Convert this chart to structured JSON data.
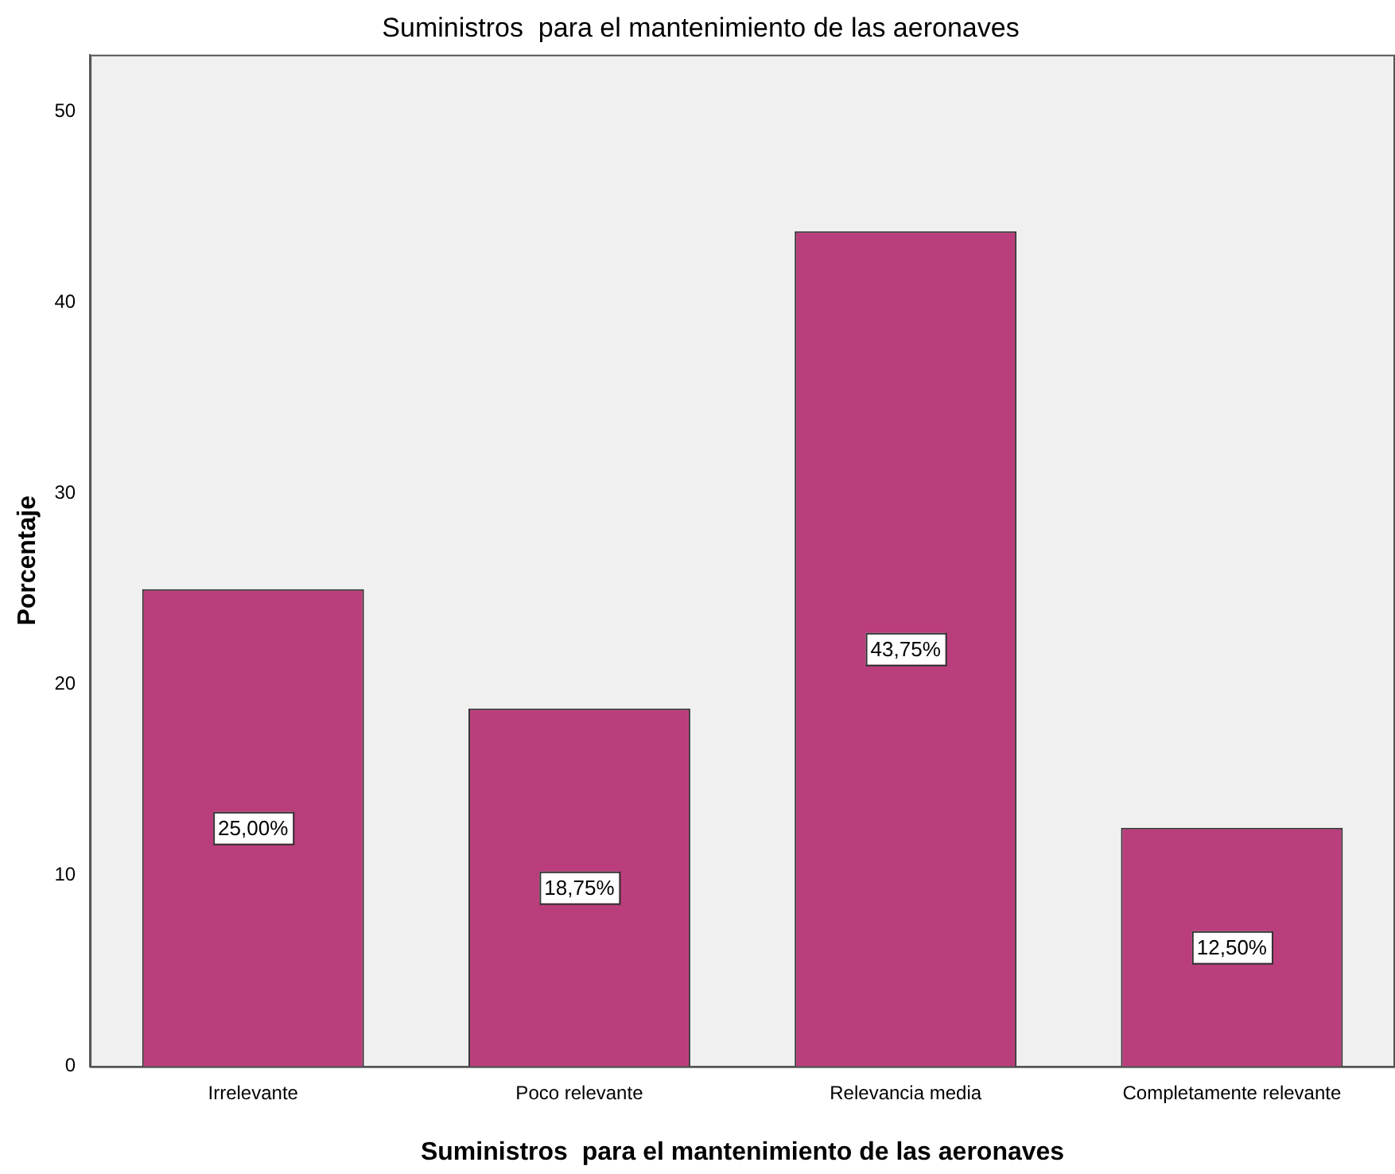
{
  "chart_data": {
    "type": "bar",
    "title": "Suministros  para el mantenimiento de las aeronaves",
    "xlabel": "Suministros  para el mantenimiento de las aeronaves",
    "ylabel": "Porcentaje",
    "categories": [
      "Irrelevante",
      "Poco relevante",
      "Relevancia media",
      "Completamente relevante"
    ],
    "values": [
      25,
      18.75,
      43.75,
      12.5
    ],
    "value_labels": [
      "25,00%",
      "18,75%",
      "43,75%",
      "12,50%"
    ],
    "color": "#bb3e7c",
    "ylim": [
      0,
      53
    ],
    "yticks": [
      0,
      10,
      20,
      30,
      40,
      50
    ],
    "grid": false,
    "legend": false
  }
}
